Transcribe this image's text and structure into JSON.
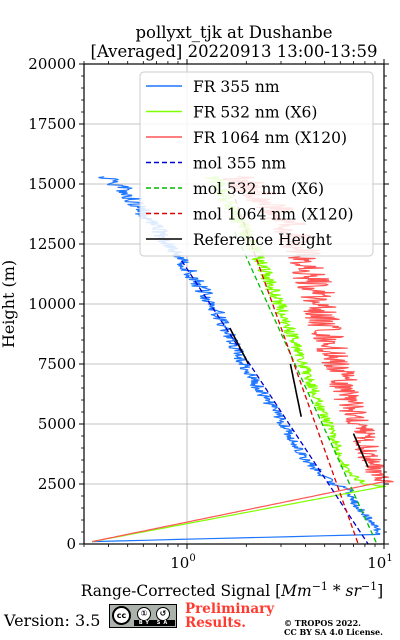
{
  "chart_data": {
    "type": "line",
    "title_line1": "pollyxt_tjk at Dushanbe",
    "title_line2": "[Averaged] 20220913 13:00-13:59",
    "xlabel_prefix": "Range-Corrected Signal [",
    "xlabel_unit_base1": "Mm",
    "xlabel_unit_exp1": "−1",
    "xlabel_unit_mid": " * ",
    "xlabel_unit_base2": "sr",
    "xlabel_unit_exp2": "−1",
    "xlabel_suffix": "]",
    "ylabel": "Height (m)",
    "xscale": "log",
    "xlim": [
      0.3,
      10
    ],
    "ylim": [
      0,
      20000
    ],
    "xticks": [
      {
        "value": 1,
        "base": "10",
        "exp": "0"
      },
      {
        "value": 10,
        "base": "10",
        "exp": "1"
      }
    ],
    "yticks": [
      0,
      2500,
      5000,
      7500,
      10000,
      12500,
      15000,
      17500,
      20000
    ],
    "ytick_labels": [
      "0",
      "2500",
      "5000",
      "7500",
      "10000",
      "12500",
      "15000",
      "17500",
      "20000"
    ],
    "grid": true,
    "legend_position": "top-right",
    "legend": [
      {
        "label": "FR 355 nm",
        "color": "#1f77ff",
        "style": "solid"
      },
      {
        "label": "FR 532 nm (X6)",
        "color": "#80ff00",
        "style": "solid"
      },
      {
        "label": "FR 1064 nm (X120)",
        "color": "#ff5555",
        "style": "solid"
      },
      {
        "label": "mol 355 nm",
        "color": "#0000cc",
        "style": "dashed"
      },
      {
        "label": "mol 532 nm (X6)",
        "color": "#00bb00",
        "style": "dashed"
      },
      {
        "label": "mol 1064 nm (X120)",
        "color": "#dd0000",
        "style": "dashed"
      },
      {
        "label": "Reference Height",
        "color": "#000000",
        "style": "solid"
      }
    ],
    "series": [
      {
        "name": "FR 355 nm",
        "color": "#1f77ff",
        "noise": 0.04,
        "points": [
          [
            0.33,
            100
          ],
          [
            9.5,
            400
          ],
          [
            9.0,
            800
          ],
          [
            8.0,
            1200
          ],
          [
            7.2,
            1600
          ],
          [
            6.8,
            2000
          ],
          [
            6.6,
            2300
          ],
          [
            5.5,
            2500
          ],
          [
            4.0,
            3500
          ],
          [
            3.1,
            5000
          ],
          [
            2.3,
            6500
          ],
          [
            1.8,
            8000
          ],
          [
            1.35,
            10000
          ],
          [
            1.0,
            11500
          ],
          [
            0.78,
            12700
          ],
          [
            0.62,
            13700
          ],
          [
            0.48,
            14800
          ],
          [
            0.38,
            15300
          ]
        ]
      },
      {
        "name": "FR 532 nm (X6)",
        "color": "#80ff00",
        "noise": 0.035,
        "points": [
          [
            0.33,
            100
          ],
          [
            10.0,
            2400
          ],
          [
            8.0,
            2500
          ],
          [
            6.5,
            3000
          ],
          [
            5.2,
            5000
          ],
          [
            4.1,
            7000
          ],
          [
            3.3,
            9000
          ],
          [
            2.6,
            11000
          ],
          [
            2.1,
            12700
          ],
          [
            1.7,
            13900
          ],
          [
            1.45,
            15000
          ],
          [
            1.35,
            15300
          ]
        ]
      },
      {
        "name": "FR 1064 nm (X120)",
        "color": "#ff5555",
        "noise": 0.09,
        "points": [
          [
            0.33,
            100
          ],
          [
            10.0,
            2600
          ],
          [
            9.0,
            3000
          ],
          [
            8.2,
            4000
          ],
          [
            7.5,
            5000
          ],
          [
            6.6,
            6000
          ],
          [
            5.8,
            7500
          ],
          [
            5.0,
            9000
          ],
          [
            4.6,
            10500
          ],
          [
            4.1,
            11500
          ],
          [
            3.6,
            12500
          ],
          [
            3.2,
            13300
          ],
          [
            2.5,
            14300
          ],
          [
            2.0,
            15000
          ],
          [
            1.8,
            15300
          ]
        ]
      },
      {
        "name": "mol 355 nm",
        "color": "#0000cc",
        "dashed": true,
        "points": [
          [
            0.94,
            11800
          ],
          [
            8.3,
            0
          ]
        ]
      },
      {
        "name": "mol 532 nm (X6)",
        "color": "#00bb00",
        "dashed": true,
        "points": [
          [
            1.75,
            13000
          ],
          [
            9.2,
            0
          ]
        ]
      },
      {
        "name": "mol 1064 nm (X120)",
        "color": "#dd0000",
        "dashed": true,
        "points": [
          [
            1.65,
            15000
          ],
          [
            7.4,
            0
          ]
        ]
      },
      {
        "name": "Reference Height",
        "color": "#000000",
        "segments": [
          [
            [
              2.05,
              7500
            ],
            [
              1.65,
              9000
            ]
          ],
          [
            [
              3.35,
              7500
            ],
            [
              3.8,
              5300
            ]
          ],
          [
            [
              7.0,
              4600
            ],
            [
              8.3,
              3200
            ]
          ]
        ]
      }
    ]
  },
  "footer": {
    "version": "Version: 3.5",
    "license_icon_cc": "cc",
    "license_icon_by": "①",
    "license_icon_sa": "↺",
    "license_strip": "BY SA",
    "preliminary_line1": "Preliminary",
    "preliminary_line2": "Results.",
    "copyright_line1": "© TROPOS 2022.",
    "copyright_line2": "CC BY SA 4.0 License."
  }
}
